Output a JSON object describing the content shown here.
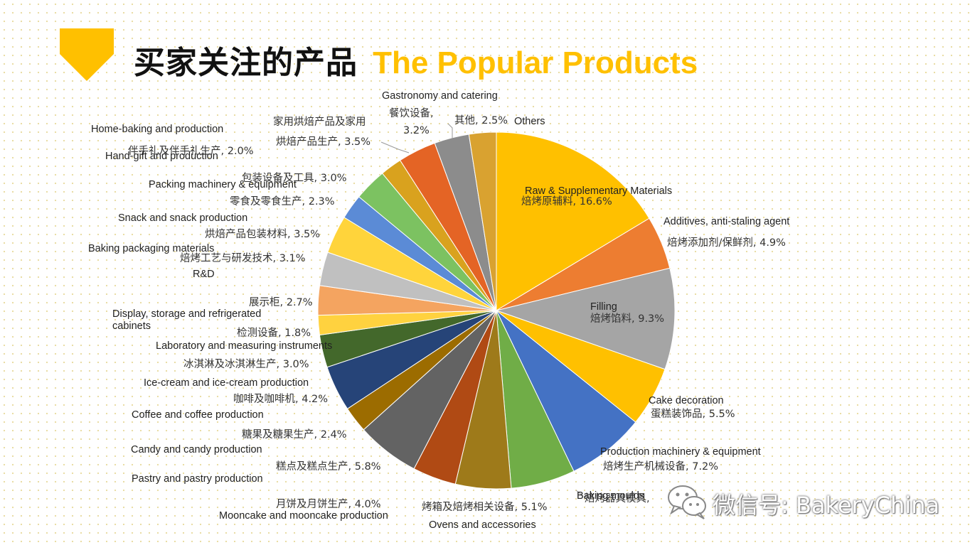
{
  "header": {
    "title_cn": "买家关注的产品",
    "title_en": "The Popular Products",
    "accent_color": "#FFC000"
  },
  "watermark": {
    "icon": "wechat-icon",
    "text": "微信号: BakeryChina"
  },
  "chart_data": {
    "type": "pie",
    "title": "买家关注的产品 The Popular Products",
    "start": "12 o'clock, clockwise",
    "slices": [
      {
        "en": "Raw & Supplementary Materials",
        "cn": "焙烤原辅料",
        "value": 16.6,
        "color": "#FFC000"
      },
      {
        "en": "Additives, anti-staling agent",
        "cn": "焙烤添加剂/保鲜剂",
        "value": 4.9,
        "color": "#ED7D31"
      },
      {
        "en": "Filling",
        "cn": "焙烤馅料",
        "value": 9.3,
        "color": "#A5A5A5"
      },
      {
        "en": "Cake decoration",
        "cn": "蛋糕装饰品",
        "value": 5.5,
        "color": "#FFC000"
      },
      {
        "en": "Production machinery & equipment",
        "cn": "焙烤生产机械设备",
        "value": 7.2,
        "color": "#4472C4"
      },
      {
        "en": "Baking moulds",
        "cn": "焙烤器具模具",
        "value": 5.9,
        "color": "#70AD47"
      },
      {
        "en": "Ovens and accessories",
        "cn": "烤箱及焙烤相关设备",
        "value": 5.1,
        "color": "#9E7A1A"
      },
      {
        "en": "Mooncake and mooncake production",
        "cn": "月饼及月饼生产",
        "value": 4.0,
        "color": "#B04A14"
      },
      {
        "en": "Pastry and pastry production",
        "cn": "糕点及糕点生产",
        "value": 5.8,
        "color": "#636363"
      },
      {
        "en": "Candy and candy production",
        "cn": "糖果及糖果生产",
        "value": 2.4,
        "color": "#9C6C00"
      },
      {
        "en": "Coffee and coffee production",
        "cn": "咖啡及咖啡机",
        "value": 4.2,
        "color": "#264478"
      },
      {
        "en": "Ice-cream and ice-cream production",
        "cn": "冰淇淋及冰淇淋生产",
        "value": 3.0,
        "color": "#43682B"
      },
      {
        "en": "Laboratory and measuring instruments",
        "cn": "检测设备",
        "value": 1.8,
        "color": "#FFD23F"
      },
      {
        "en": "Display, storage and refrigerated cabinets",
        "cn": "展示柜",
        "value": 2.7,
        "color": "#F4A460"
      },
      {
        "en": "R&D",
        "cn": "焙烤工艺与研发技术",
        "value": 3.1,
        "color": "#C0C0C0"
      },
      {
        "en": "Baking packaging materials",
        "cn": "烘焙产品包装材料",
        "value": 3.5,
        "color": "#FFD43B"
      },
      {
        "en": "Snack and snack production",
        "cn": "零食及零食生产",
        "value": 2.3,
        "color": "#5B8BD6"
      },
      {
        "en": "Packing machinery & equipment",
        "cn": "包装设备及工具",
        "value": 3.0,
        "color": "#7CC261"
      },
      {
        "en": "Hand-gift and production",
        "cn": "伴手礼及伴手礼生产",
        "value": 2.0,
        "color": "#D9A21E"
      },
      {
        "en": "Home-baking and production",
        "cn": "家用烘焙产品及家用烘焙产品生产",
        "value": 3.5,
        "color": "#E46425"
      },
      {
        "en": "Gastronomy and catering",
        "cn": "餐饮设备",
        "value": 3.2,
        "color": "#8C8C8C"
      },
      {
        "en": "Others",
        "cn": "其他",
        "value": 2.5,
        "color": "#D9A230"
      }
    ],
    "labels": [
      {
        "en": "Raw & Supplementary Materials",
        "cn": "焙烤原辅料, 16.6%"
      },
      {
        "en": "Additives, anti-staling agent",
        "cn": "焙烤添加剂/保鲜剂, 4.9%"
      },
      {
        "en": "Filling",
        "cn": "焙烤馅料, 9.3%"
      },
      {
        "en": "Cake decoration",
        "cn": "蛋糕装饰品, 5.5%"
      },
      {
        "en": "Production machinery & equipment",
        "cn": "焙烤生产机械设备, 7.2%"
      },
      {
        "en": "Baking moulds",
        "cn": "焙烤器具模具,"
      },
      {
        "en": "Ovens and accessories",
        "cn": "烤箱及焙烤相关设备, 5.1%"
      },
      {
        "en": "Mooncake and mooncake production",
        "cn": "月饼及月饼生产, 4.0%"
      },
      {
        "en": "Pastry and pastry production",
        "cn": "糕点及糕点生产, 5.8%"
      },
      {
        "en": "Candy and candy production",
        "cn": "糖果及糖果生产, 2.4%"
      },
      {
        "en": "Coffee and coffee production",
        "cn": "咖啡及咖啡机, 4.2%"
      },
      {
        "en": "Ice-cream and ice-cream production",
        "cn": "冰淇淋及冰淇淋生产, 3.0%"
      },
      {
        "en": "Laboratory and measuring instruments",
        "cn": "检测设备, 1.8%"
      },
      {
        "en": "Display, storage and refrigerated cabinets",
        "cn": "展示柜, 2.7%"
      },
      {
        "en": "R&D",
        "cn": "焙烤工艺与研发技术, 3.1%"
      },
      {
        "en": "Baking packaging materials",
        "cn": "烘焙产品包装材料, 3.5%"
      },
      {
        "en": "Snack and snack production",
        "cn": "零食及零食生产, 2.3%"
      },
      {
        "en": "Packing machinery & equipment",
        "cn": "包装设备及工具, 3.0%"
      },
      {
        "en": "Hand-gift and production",
        "cn": "伴手礼及伴手礼生产, 2.0%"
      },
      {
        "en": "Home-baking and production",
        "cn": "家用烘焙产品及家用",
        "cn2": "烘焙产品生产, 3.5%"
      },
      {
        "en": "Gastronomy and catering",
        "cn": "餐饮设备,",
        "cn2": "3.2%"
      },
      {
        "en": "Others",
        "cn": "其他, 2.5%"
      }
    ]
  }
}
